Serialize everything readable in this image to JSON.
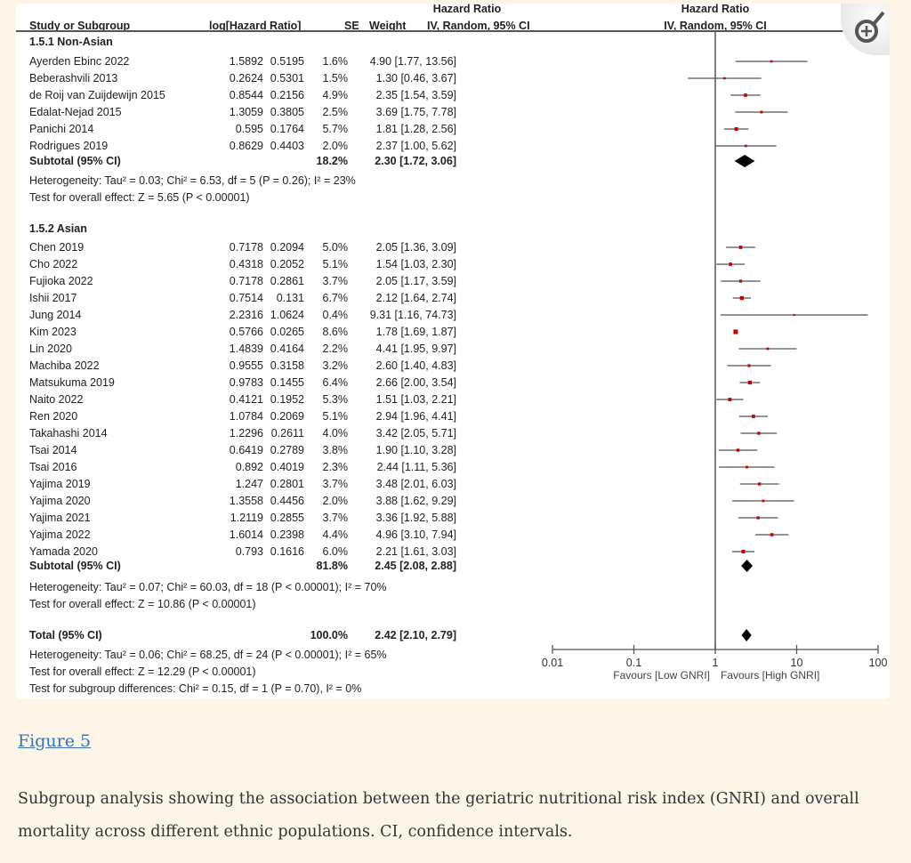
{
  "figure_link": "Figure 5",
  "caption": "Subgroup analysis showing the association between the geriatric nutritional risk index (GNRI) and overall mortality across different ethnic populations. CI, confidence intervals.",
  "zoom_icon": "zoom-in-icon",
  "chart_data": {
    "type": "forest",
    "headers": {
      "study": "Study or Subgroup",
      "loghr": "log[Hazard Ratio]",
      "se": "SE",
      "weight": "Weight",
      "hr_top": "Hazard Ratio",
      "hr_bottom": "IV, Random, 95% CI",
      "plot_top": "Hazard Ratio",
      "plot_bottom": "IV, Random, 95% CI"
    },
    "colors": {
      "marker": "#cc0000",
      "diamond": "#000000",
      "line": "#555555"
    },
    "subgroups": [
      {
        "label": "1.5.1 Non-Asian",
        "studies": [
          {
            "name": "Ayerden Ebinc 2022",
            "loghr": "1.5892",
            "se": "0.5195",
            "weight": "1.6%",
            "ci_text": "4.90 [1.77, 13.56]",
            "hr": 4.9,
            "lo": 1.77,
            "hi": 13.56
          },
          {
            "name": "Beberashvili 2013",
            "loghr": "0.2624",
            "se": "0.5301",
            "weight": "1.5%",
            "ci_text": "1.30 [0.46, 3.67]",
            "hr": 1.3,
            "lo": 0.46,
            "hi": 3.67
          },
          {
            "name": "de Roij van Zuijdewijn 2015",
            "loghr": "0.8544",
            "se": "0.2156",
            "weight": "4.9%",
            "ci_text": "2.35 [1.54, 3.59]",
            "hr": 2.35,
            "lo": 1.54,
            "hi": 3.59
          },
          {
            "name": "Edalat-Nejad 2015",
            "loghr": "1.3059",
            "se": "0.3805",
            "weight": "2.5%",
            "ci_text": "3.69 [1.75, 7.78]",
            "hr": 3.69,
            "lo": 1.75,
            "hi": 7.78
          },
          {
            "name": "Panichi 2014",
            "loghr": "0.595",
            "se": "0.1764",
            "weight": "5.7%",
            "ci_text": "1.81 [1.28, 2.56]",
            "hr": 1.81,
            "lo": 1.28,
            "hi": 2.56
          },
          {
            "name": "Rodrigues 2019",
            "loghr": "0.8629",
            "se": "0.4403",
            "weight": "2.0%",
            "ci_text": "2.37 [1.00, 5.62]",
            "hr": 2.37,
            "lo": 1.0,
            "hi": 5.62
          }
        ],
        "subtotal": {
          "label": "Subtotal (95% CI)",
          "weight": "18.2%",
          "ci_text": "2.30 [1.72, 3.06]",
          "hr": 2.3,
          "lo": 1.72,
          "hi": 3.06
        },
        "heterogeneity": "Heterogeneity: Tau² = 0.03; Chi² = 6.53, df = 5 (P = 0.26); I² = 23%",
        "overall": "Test for overall effect: Z = 5.65 (P < 0.00001)"
      },
      {
        "label": "1.5.2 Asian",
        "studies": [
          {
            "name": "Chen 2019",
            "loghr": "0.7178",
            "se": "0.2094",
            "weight": "5.0%",
            "ci_text": "2.05 [1.36, 3.09]",
            "hr": 2.05,
            "lo": 1.36,
            "hi": 3.09
          },
          {
            "name": "Cho 2022",
            "loghr": "0.4318",
            "se": "0.2052",
            "weight": "5.1%",
            "ci_text": "1.54 [1.03, 2.30]",
            "hr": 1.54,
            "lo": 1.03,
            "hi": 2.3
          },
          {
            "name": "Fujioka 2022",
            "loghr": "0.7178",
            "se": "0.2861",
            "weight": "3.7%",
            "ci_text": "2.05 [1.17, 3.59]",
            "hr": 2.05,
            "lo": 1.17,
            "hi": 3.59
          },
          {
            "name": "Ishii 2017",
            "loghr": "0.7514",
            "se": "0.131",
            "weight": "6.7%",
            "ci_text": "2.12 [1.64, 2.74]",
            "hr": 2.12,
            "lo": 1.64,
            "hi": 2.74
          },
          {
            "name": "Jung 2014",
            "loghr": "2.2316",
            "se": "1.0624",
            "weight": "0.4%",
            "ci_text": "9.31 [1.16, 74.73]",
            "hr": 9.31,
            "lo": 1.16,
            "hi": 74.73
          },
          {
            "name": "Kim 2023",
            "loghr": "0.5766",
            "se": "0.0265",
            "weight": "8.6%",
            "ci_text": "1.78 [1.69, 1.87]",
            "hr": 1.78,
            "lo": 1.69,
            "hi": 1.87
          },
          {
            "name": "Lin 2020",
            "loghr": "1.4839",
            "se": "0.4164",
            "weight": "2.2%",
            "ci_text": "4.41 [1.95, 9.97]",
            "hr": 4.41,
            "lo": 1.95,
            "hi": 9.97
          },
          {
            "name": "Machiba 2022",
            "loghr": "0.9555",
            "se": "0.3158",
            "weight": "3.2%",
            "ci_text": "2.60 [1.40, 4.83]",
            "hr": 2.6,
            "lo": 1.4,
            "hi": 4.83
          },
          {
            "name": "Matsukuma 2019",
            "loghr": "0.9783",
            "se": "0.1455",
            "weight": "6.4%",
            "ci_text": "2.66 [2.00, 3.54]",
            "hr": 2.66,
            "lo": 2.0,
            "hi": 3.54
          },
          {
            "name": "Naito 2022",
            "loghr": "0.4121",
            "se": "0.1952",
            "weight": "5.3%",
            "ci_text": "1.51 [1.03, 2.21]",
            "hr": 1.51,
            "lo": 1.03,
            "hi": 2.21
          },
          {
            "name": "Ren 2020",
            "loghr": "1.0784",
            "se": "0.2069",
            "weight": "5.1%",
            "ci_text": "2.94 [1.96, 4.41]",
            "hr": 2.94,
            "lo": 1.96,
            "hi": 4.41
          },
          {
            "name": "Takahashi 2014",
            "loghr": "1.2296",
            "se": "0.2611",
            "weight": "4.0%",
            "ci_text": "3.42 [2.05, 5.71]",
            "hr": 3.42,
            "lo": 2.05,
            "hi": 5.71
          },
          {
            "name": "Tsai 2014",
            "loghr": "0.6419",
            "se": "0.2789",
            "weight": "3.8%",
            "ci_text": "1.90 [1.10, 3.28]",
            "hr": 1.9,
            "lo": 1.1,
            "hi": 3.28
          },
          {
            "name": "Tsai 2016",
            "loghr": "0.892",
            "se": "0.4019",
            "weight": "2.3%",
            "ci_text": "2.44 [1.11, 5.36]",
            "hr": 2.44,
            "lo": 1.11,
            "hi": 5.36
          },
          {
            "name": "Yajima 2019",
            "loghr": "1.247",
            "se": "0.2801",
            "weight": "3.7%",
            "ci_text": "3.48 [2.01, 6.03]",
            "hr": 3.48,
            "lo": 2.01,
            "hi": 6.03
          },
          {
            "name": "Yajima 2020",
            "loghr": "1.3558",
            "se": "0.4456",
            "weight": "2.0%",
            "ci_text": "3.88 [1.62, 9.29]",
            "hr": 3.88,
            "lo": 1.62,
            "hi": 9.29
          },
          {
            "name": "Yajima 2021",
            "loghr": "1.2119",
            "se": "0.2855",
            "weight": "3.7%",
            "ci_text": "3.36 [1.92, 5.88]",
            "hr": 3.36,
            "lo": 1.92,
            "hi": 5.88
          },
          {
            "name": "Yajima 2022",
            "loghr": "1.6014",
            "se": "0.2398",
            "weight": "4.4%",
            "ci_text": "4.96 [3.10, 7.94]",
            "hr": 4.96,
            "lo": 3.1,
            "hi": 7.94
          },
          {
            "name": "Yamada 2020",
            "loghr": "0.793",
            "se": "0.1616",
            "weight": "6.0%",
            "ci_text": "2.21 [1.61, 3.03]",
            "hr": 2.21,
            "lo": 1.61,
            "hi": 3.03
          }
        ],
        "subtotal": {
          "label": "Subtotal (95% CI)",
          "weight": "81.8%",
          "ci_text": "2.45 [2.08, 2.88]",
          "hr": 2.45,
          "lo": 2.08,
          "hi": 2.88
        },
        "heterogeneity": "Heterogeneity: Tau² = 0.07; Chi² = 60.03, df = 18 (P < 0.00001); I² = 70%",
        "overall": "Test for overall effect: Z = 10.86 (P < 0.00001)"
      }
    ],
    "total": {
      "label": "Total (95% CI)",
      "weight": "100.0%",
      "ci_text": "2.42 [2.10, 2.79]",
      "hr": 2.42,
      "lo": 2.1,
      "hi": 2.79
    },
    "total_notes": [
      "Heterogeneity: Tau² = 0.06; Chi² = 68.25, df = 24 (P < 0.00001); I² = 65%",
      "Test for overall effect: Z = 12.29 (P < 0.00001)",
      "Test for subgroup differences: Chi² = 0.15, df = 1 (P = 0.70), I² = 0%"
    ],
    "x_scale": "log",
    "xlim": [
      0.01,
      100
    ],
    "x_ticks": [
      "0.01",
      "0.1",
      "1",
      "10",
      "100"
    ],
    "x_tick_values": [
      0.01,
      0.1,
      1,
      10,
      100
    ],
    "favours_left": "Favours [Low GNRI]",
    "favours_right": "Favours [High GNRI]"
  }
}
